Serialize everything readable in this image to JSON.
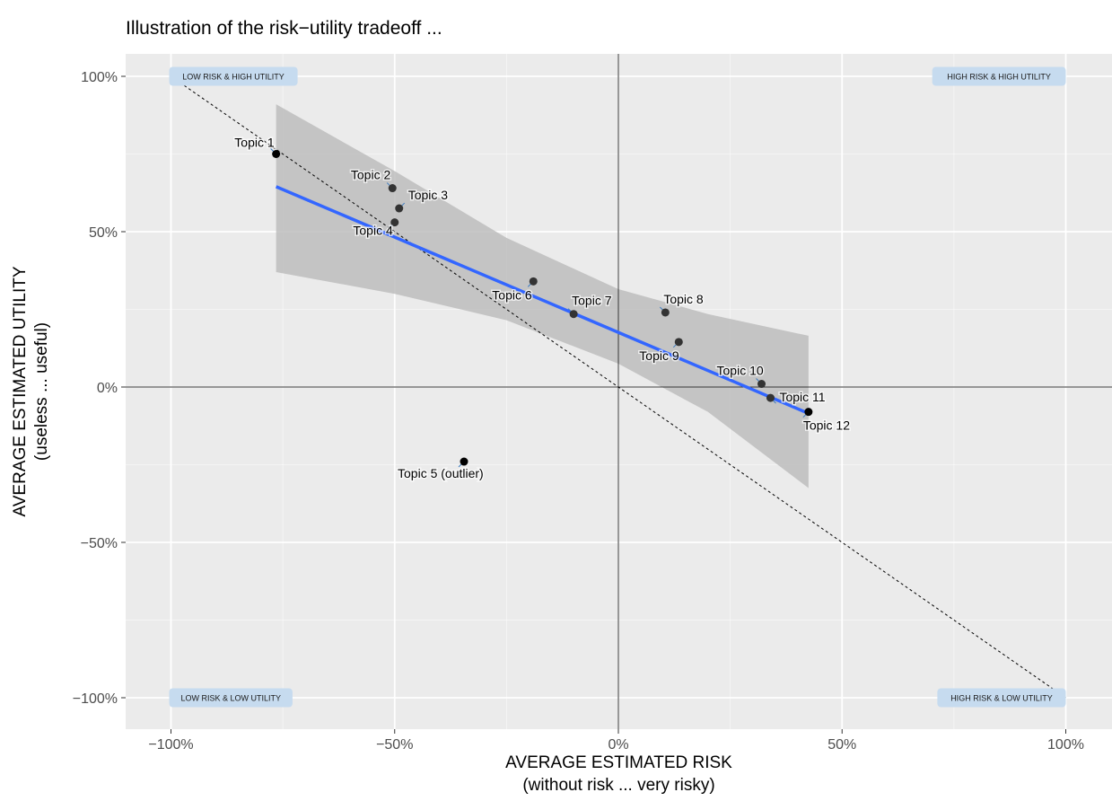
{
  "chart_data": {
    "type": "scatter",
    "title": "Illustration of the risk−utility tradeoff ...",
    "xlabel": [
      "AVERAGE ESTIMATED RISK",
      "(without risk ... very risky)"
    ],
    "ylabel": [
      "AVERAGE ESTIMATED UTILITY",
      "(useless ... useful)"
    ],
    "xlim": [
      -1.1,
      1.1
    ],
    "ylim": [
      -1.1,
      1.1
    ],
    "x_ticks": [
      -1,
      -0.5,
      0,
      0.5,
      1
    ],
    "x_tick_labels": [
      "−100%",
      "−50%",
      "0%",
      "50%",
      "100%"
    ],
    "y_ticks": [
      1,
      0.5,
      0,
      -0.5,
      -1
    ],
    "y_tick_labels": [
      "100%",
      "50%",
      "0%",
      "−50%",
      "−100%"
    ],
    "grid": true,
    "reference_lines": [
      {
        "type": "vertical",
        "x": 0
      },
      {
        "type": "horizontal",
        "y": 0
      },
      {
        "type": "diagonal",
        "from": [
          -1,
          1
        ],
        "to": [
          1,
          -1
        ],
        "style": "dashed"
      }
    ],
    "regression": {
      "method": "linear",
      "color": "#3366ff",
      "band_color": "#bdbdbd",
      "line": [
        [
          -0.765,
          0.645
        ],
        [
          0.425,
          -0.085
        ]
      ],
      "band_upper": [
        [
          -0.765,
          0.91
        ],
        [
          -0.5,
          0.695
        ],
        [
          -0.25,
          0.48
        ],
        [
          0.0,
          0.315
        ],
        [
          0.2,
          0.235
        ],
        [
          0.425,
          0.165
        ]
      ],
      "band_lower": [
        [
          -0.765,
          0.37
        ],
        [
          -0.5,
          0.3
        ],
        [
          -0.25,
          0.215
        ],
        [
          0.0,
          0.075
        ],
        [
          0.2,
          -0.08
        ],
        [
          0.425,
          -0.325
        ]
      ]
    },
    "points": [
      {
        "label": "Topic 1",
        "x": -0.765,
        "y": 0.75,
        "color": "#000000"
      },
      {
        "label": "Topic 2",
        "x": -0.505,
        "y": 0.64,
        "color": "#333333"
      },
      {
        "label": "Topic 3",
        "x": -0.49,
        "y": 0.575,
        "color": "#333333"
      },
      {
        "label": "Topic 4",
        "x": -0.5,
        "y": 0.53,
        "color": "#333333"
      },
      {
        "label": "Topic 5 (outlier)",
        "x": -0.345,
        "y": -0.24,
        "color": "#000000"
      },
      {
        "label": "Topic 6",
        "x": -0.19,
        "y": 0.34,
        "color": "#333333"
      },
      {
        "label": "Topic 7",
        "x": -0.1,
        "y": 0.235,
        "color": "#333333"
      },
      {
        "label": "Topic 8",
        "x": 0.105,
        "y": 0.24,
        "color": "#333333"
      },
      {
        "label": "Topic 9",
        "x": 0.135,
        "y": 0.145,
        "color": "#333333"
      },
      {
        "label": "Topic 10",
        "x": 0.32,
        "y": 0.01,
        "color": "#333333"
      },
      {
        "label": "Topic 11",
        "x": 0.34,
        "y": -0.035,
        "color": "#333333"
      },
      {
        "label": "Topic 12",
        "x": 0.425,
        "y": -0.08,
        "color": "#000000"
      }
    ],
    "quadrant_labels": [
      {
        "text": "LOW RISK & HIGH UTILITY",
        "position": "top-left"
      },
      {
        "text": "HIGH RISK & HIGH UTILITY",
        "position": "top-right"
      },
      {
        "text": "LOW RISK & LOW UTILITY",
        "position": "bottom-left"
      },
      {
        "text": "HIGH RISK & LOW UTILITY",
        "position": "bottom-right"
      }
    ],
    "colors": {
      "panel": "#ebebeb",
      "grid": "#ffffff",
      "quadrant_box": "#c6dbef"
    }
  }
}
